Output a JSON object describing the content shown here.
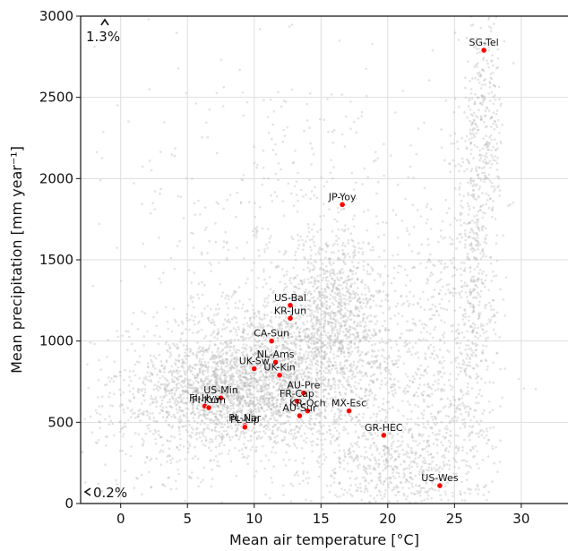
{
  "chart_data": {
    "type": "scatter",
    "xlabel": "Mean air temperature [°C]",
    "ylabel": "Mean precipitation [mm year⁻¹]",
    "xlim": [
      -3,
      33.5
    ],
    "ylim": [
      0,
      3000
    ],
    "xticks": [
      "0",
      "5",
      "10",
      "15",
      "20",
      "25",
      "30"
    ],
    "yticks": [
      "0",
      "500",
      "1000",
      "1500",
      "2000",
      "2500",
      "3000"
    ],
    "grid": true,
    "background_points_color": "#b0b0b0",
    "site_color": "#ff0000",
    "annotations": {
      "top_left": "1.3%",
      "bottom_left": "0.2%"
    },
    "sites": [
      {
        "name": "SG-Tel",
        "x": 27.2,
        "y": 2790
      },
      {
        "name": "JP-Yoy",
        "x": 16.6,
        "y": 1840
      },
      {
        "name": "US-Bal",
        "x": 12.7,
        "y": 1220
      },
      {
        "name": "KR-Jun",
        "x": 12.7,
        "y": 1140
      },
      {
        "name": "CA-Sun",
        "x": 11.3,
        "y": 1000
      },
      {
        "name": "NL-Ams",
        "x": 11.6,
        "y": 870
      },
      {
        "name": "UK-Sw",
        "x": 10.0,
        "y": 830
      },
      {
        "name": "UK-Kin",
        "x": 11.9,
        "y": 790
      },
      {
        "name": "AU-Pre",
        "x": 13.7,
        "y": 680
      },
      {
        "name": "FR-Cap",
        "x": 13.2,
        "y": 630
      },
      {
        "name": "US-Min",
        "x": 7.5,
        "y": 650
      },
      {
        "name": "FI-Hyy",
        "x": 6.3,
        "y": 600
      },
      {
        "name": "FI-Kum",
        "x": 6.6,
        "y": 590
      },
      {
        "name": "KR-Och",
        "x": 14.0,
        "y": 570
      },
      {
        "name": "MX-Esc",
        "x": 17.1,
        "y": 570
      },
      {
        "name": "AU-Sur",
        "x": 13.4,
        "y": 540
      },
      {
        "name": "PL-Nar",
        "x": 9.3,
        "y": 480
      },
      {
        "name": "PL-Lip",
        "x": 9.3,
        "y": 470
      },
      {
        "name": "GR-HEC",
        "x": 19.7,
        "y": 420
      },
      {
        "name": "US-Wes",
        "x": 23.9,
        "y": 110
      }
    ]
  }
}
